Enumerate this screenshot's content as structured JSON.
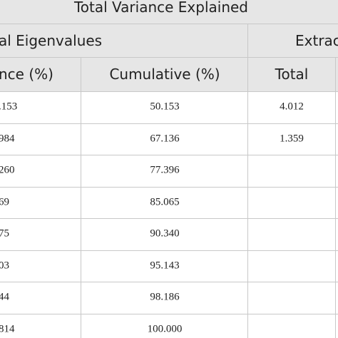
{
  "header": {
    "title": "Total Variance Explained",
    "groups": [
      "al Eigenvalues",
      "Extrac"
    ]
  },
  "table": {
    "columns": [
      "nce (%)",
      "Cumulative (%)",
      "Total"
    ],
    "rows": [
      [
        ".153",
        "50.153",
        "4.012"
      ],
      [
        "984",
        "67.136",
        "1.359"
      ],
      [
        "260",
        "77.396"
      ],
      [
        "69",
        "85.065"
      ],
      [
        "75",
        "90.340"
      ],
      [
        "03",
        "95.143"
      ],
      [
        "44",
        "98.186"
      ],
      [
        "814",
        "100.000"
      ]
    ]
  }
}
